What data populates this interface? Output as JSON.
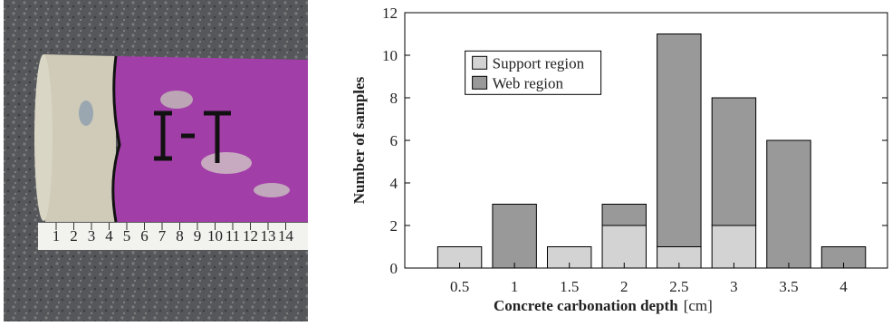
{
  "photo": {
    "ruler_labels": [
      1,
      2,
      3,
      4,
      5,
      6,
      7,
      8,
      9,
      10,
      11,
      12,
      13,
      14
    ]
  },
  "chart_data": {
    "type": "stacked-bar",
    "ylabel": "Number of samples",
    "xlabel": "Concrete carbonation depth",
    "xlabel_unit": "[cm]",
    "x": [
      0.5,
      1,
      1.5,
      2,
      2.5,
      3,
      3.5,
      4
    ],
    "series": [
      {
        "name": "Support region",
        "color": "#d3d3d3",
        "values": [
          1,
          0,
          1,
          2,
          1,
          2,
          0,
          0
        ]
      },
      {
        "name": "Web region",
        "color": "#999999",
        "values": [
          0,
          3,
          0,
          1,
          10,
          6,
          6,
          1
        ]
      }
    ],
    "xlim": [
      0,
      4.4
    ],
    "xticks": [
      0.5,
      1,
      1.5,
      2,
      2.5,
      3,
      3.5,
      4
    ],
    "ylim": [
      0,
      12
    ],
    "yticks": [
      0,
      2,
      4,
      6,
      8,
      10,
      12
    ],
    "legend": "upper-left",
    "grid": false
  }
}
